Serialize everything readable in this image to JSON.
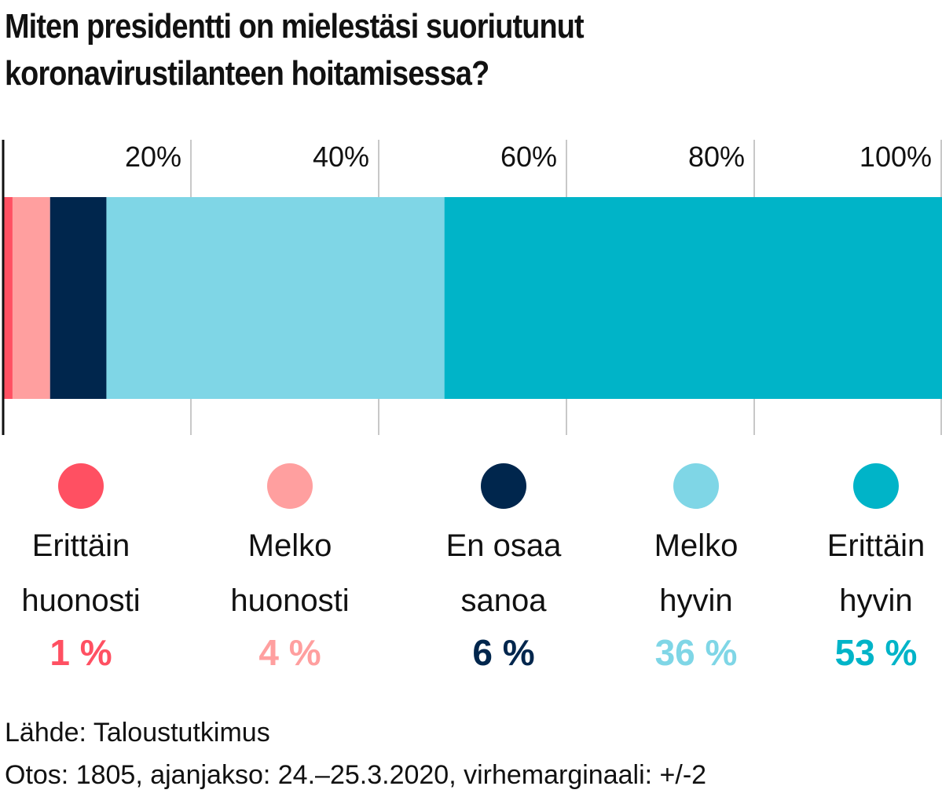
{
  "title": {
    "line1": "Miten presidentti on mielestäsi suoriutunut",
    "line2": "koronavirustilanteen hoitamisessa?"
  },
  "chart_data": {
    "type": "bar",
    "orientation": "horizontal-stacked",
    "title": "Miten presidentti on mielestäsi suoriutunut koronavirustilanteen hoitamisessa?",
    "xlim": [
      0,
      100
    ],
    "x_ticks": [
      20,
      40,
      60,
      80,
      100
    ],
    "x_tick_labels": [
      "20%",
      "40%",
      "60%",
      "80%",
      "100%"
    ],
    "grid": true,
    "legend_position": "bottom",
    "series": [
      {
        "label_line1": "Erittäin",
        "label_line2": "huonosti",
        "value": 1,
        "value_label": "1 %",
        "color": "#ff5062"
      },
      {
        "label_line1": "Melko",
        "label_line2": "huonosti",
        "value": 4,
        "value_label": "4 %",
        "color": "#ff9f9f"
      },
      {
        "label_line1": "En osaa",
        "label_line2": "sanoa",
        "value": 6,
        "value_label": "6 %",
        "color": "#00264d"
      },
      {
        "label_line1": "Melko",
        "label_line2": "hyvin",
        "value": 36,
        "value_label": "36 %",
        "color": "#7fd6e6"
      },
      {
        "label_line1": "Erittäin",
        "label_line2": "hyvin",
        "value": 53,
        "value_label": "53 %",
        "color": "#00b4c8"
      }
    ]
  },
  "footer": {
    "source": "Lähde: Taloustutkimus",
    "sample": "Otos: 1805, ajanjakso: 24.–25.3.2020, virhemarginaali: +/-2"
  }
}
